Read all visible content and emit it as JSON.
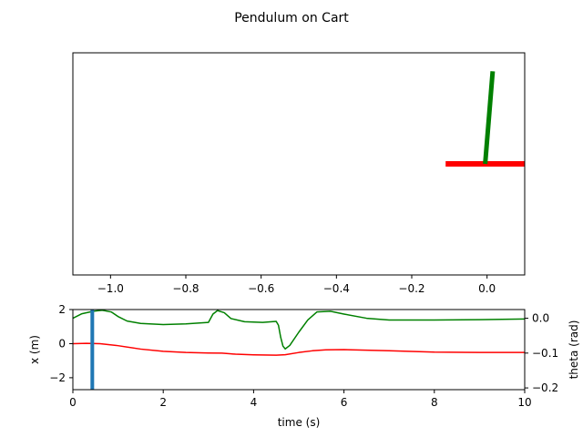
{
  "figure": {
    "title": "Pendulum on Cart"
  },
  "chart_data": [
    {
      "type": "line",
      "name": "animation",
      "xlim": [
        -1.1,
        0.1
      ],
      "ylim": [
        -0.6,
        0.6
      ],
      "x_ticks": [
        "−1.0",
        "−0.8",
        "−0.6",
        "−0.4",
        "−0.2",
        "0.0"
      ],
      "x_tick_values": [
        -1.0,
        -0.8,
        -0.6,
        -0.4,
        -0.2,
        0.0
      ],
      "y_ticks": [],
      "cart": {
        "x": [
          -0.11,
          0.11
        ],
        "y": [
          0.0,
          0.0
        ],
        "color": "#ff0000"
      },
      "pendulum": {
        "x": [
          -0.005,
          0.015
        ],
        "y": [
          0.0,
          0.5
        ],
        "color": "#008000"
      }
    },
    {
      "type": "line",
      "name": "time-history",
      "xlabel": "time (s)",
      "ylabel": "x (m)",
      "ylabel_right": "theta (rad)",
      "xlim": [
        0,
        10
      ],
      "ylim": [
        -2.7,
        2.0
      ],
      "ylim_right": [
        -0.205,
        0.025
      ],
      "x_ticks": [
        "0",
        "2",
        "4",
        "6",
        "8",
        "10"
      ],
      "x_tick_values": [
        0,
        2,
        4,
        6,
        8,
        10
      ],
      "y_ticks": [
        "−2",
        "0",
        "2"
      ],
      "y_tick_values": [
        -2,
        0,
        2
      ],
      "y_ticks_right": [
        "0.0",
        "−0.1",
        "−0.2"
      ],
      "y_tick_values_right": [
        0.0,
        -0.1,
        -0.2
      ],
      "time_marker": {
        "t": 0.43,
        "color": "#1f77b4"
      },
      "series": [
        {
          "axis": "left",
          "color": "#ff0000",
          "x": [
            0,
            0.3,
            0.6,
            1.0,
            1.5,
            2.0,
            2.5,
            3.0,
            3.3,
            3.6,
            4.0,
            4.5,
            4.7,
            5.0,
            5.3,
            5.6,
            6.0,
            7.0,
            8.0,
            9.0,
            10.0
          ],
          "y": [
            0.0,
            0.02,
            0.0,
            -0.12,
            -0.32,
            -0.45,
            -0.52,
            -0.55,
            -0.56,
            -0.62,
            -0.66,
            -0.68,
            -0.65,
            -0.52,
            -0.42,
            -0.36,
            -0.35,
            -0.42,
            -0.5,
            -0.52,
            -0.52
          ]
        },
        {
          "axis": "right",
          "color": "#008000",
          "x": [
            0,
            0.2,
            0.45,
            0.65,
            0.85,
            1.0,
            1.2,
            1.5,
            2.0,
            2.5,
            3.0,
            3.1,
            3.2,
            3.35,
            3.5,
            3.8,
            4.2,
            4.5,
            4.55,
            4.6,
            4.65,
            4.7,
            4.8,
            5.0,
            5.2,
            5.4,
            5.7,
            6.0,
            6.5,
            7.0,
            8.0,
            9.0,
            10.0
          ],
          "y": [
            0.0,
            0.013,
            0.02,
            0.023,
            0.018,
            0.005,
            -0.008,
            -0.015,
            -0.018,
            -0.016,
            -0.012,
            0.012,
            0.022,
            0.016,
            -0.001,
            -0.01,
            -0.012,
            -0.009,
            -0.02,
            -0.055,
            -0.08,
            -0.088,
            -0.078,
            -0.04,
            -0.005,
            0.018,
            0.02,
            0.012,
            0.0,
            -0.005,
            -0.005,
            -0.004,
            -0.002
          ]
        }
      ]
    }
  ]
}
